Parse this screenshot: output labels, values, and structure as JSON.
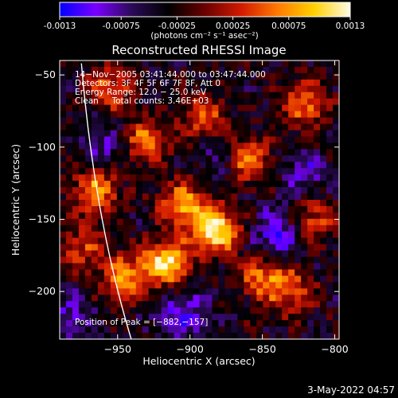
{
  "window": {
    "footer_timestamp": "3-May-2022 04:57"
  },
  "colorbar": {
    "ticks": [
      "-0.0013",
      "-0.00075",
      "-0.00025",
      "0.00025",
      "0.00075",
      "0.0013"
    ],
    "tick_values": [
      -0.0013,
      -0.00075,
      -0.00025,
      0.00025,
      0.00075,
      0.0013
    ],
    "range": [
      -0.0013,
      0.0013
    ],
    "unit_label": "(photons cm⁻² s⁻¹ asec⁻²)",
    "colors": [
      "#0000ff",
      "#7a00ff",
      "#2a0a55",
      "#000000",
      "#6a0000",
      "#d21a00",
      "#ff7a00",
      "#ffd000",
      "#fffbe6"
    ]
  },
  "chart_data": {
    "type": "heatmap",
    "title": "Reconstructed RHESSI Image",
    "xlabel": "Heliocentric X (arcsec)",
    "ylabel": "Heliocentric Y (arcsec)",
    "xlim": [
      -990,
      -797
    ],
    "ylim": [
      -233,
      -40
    ],
    "xticks": [
      -950,
      -900,
      -850,
      -800
    ],
    "xtick_labels": [
      "−950",
      "−900",
      "−850",
      "−800"
    ],
    "yticks": [
      -50,
      -100,
      -150,
      -200
    ],
    "ytick_labels": [
      "−50",
      "−100",
      "−150",
      "−200"
    ],
    "annotations": {
      "time_range": "14−Nov−2005 03:41:44.000 to 03:47:44.000",
      "detectors": "Detectors: 3F 4F 5F 6F 7F 8F, Att 0",
      "energy_range": "Energy Range: 12.0 − 25.0 keV",
      "method_counts": "Clean     Total counts: 3.46E+03",
      "peak_position": "Position of Peak = [−882,−157]"
    },
    "peak": {
      "x": -882,
      "y": -157
    },
    "limb": "solar limb arc",
    "hot_spots": [
      {
        "x": -882,
        "y": -157,
        "amp": 1.0
      },
      {
        "x": -916,
        "y": -180,
        "amp": 0.95
      },
      {
        "x": -905,
        "y": -140,
        "amp": 0.75
      },
      {
        "x": -965,
        "y": -130,
        "amp": 0.7
      },
      {
        "x": -945,
        "y": -190,
        "amp": 0.7
      },
      {
        "x": -860,
        "y": -110,
        "amp": 0.65
      },
      {
        "x": -850,
        "y": -190,
        "amp": 0.6
      },
      {
        "x": -820,
        "y": -70,
        "amp": 0.6
      },
      {
        "x": -930,
        "y": -95,
        "amp": 0.6
      },
      {
        "x": -955,
        "y": -60,
        "amp": 0.55
      },
      {
        "x": -890,
        "y": -80,
        "amp": 0.55
      },
      {
        "x": -815,
        "y": -150,
        "amp": 0.5
      },
      {
        "x": -830,
        "y": -200,
        "amp": 0.5
      },
      {
        "x": -975,
        "y": -170,
        "amp": 0.45
      }
    ],
    "cold_spots": [
      {
        "x": -840,
        "y": -160,
        "amp": 0.8
      },
      {
        "x": -905,
        "y": -215,
        "amp": 0.7
      },
      {
        "x": -985,
        "y": -220,
        "amp": 0.6
      },
      {
        "x": -880,
        "y": -110,
        "amp": 0.5
      },
      {
        "x": -820,
        "y": -120,
        "amp": 0.5
      },
      {
        "x": -960,
        "y": -100,
        "amp": 0.5
      }
    ]
  }
}
